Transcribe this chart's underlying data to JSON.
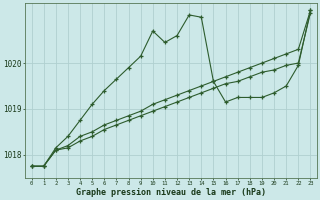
{
  "title": "Graphe pression niveau de la mer (hPa)",
  "bg_color": "#cce8e8",
  "grid_color": "#b0d0d0",
  "line_color": "#2d5c2d",
  "xlim": [
    -0.5,
    23.5
  ],
  "ylim": [
    1017.5,
    1021.3
  ],
  "yticks": [
    1018,
    1019,
    1020
  ],
  "xticks": [
    0,
    1,
    2,
    3,
    4,
    5,
    6,
    7,
    8,
    9,
    10,
    11,
    12,
    13,
    14,
    15,
    16,
    17,
    18,
    19,
    20,
    21,
    22,
    23
  ],
  "line1_x": [
    0,
    1,
    2,
    3,
    4,
    5,
    6,
    7,
    8,
    9,
    10,
    11,
    12,
    13,
    14,
    15,
    16,
    17,
    18,
    19,
    20,
    21,
    22,
    23
  ],
  "line1_y": [
    1017.75,
    1017.75,
    1018.1,
    1018.15,
    1018.3,
    1018.4,
    1018.55,
    1018.65,
    1018.75,
    1018.85,
    1018.95,
    1019.05,
    1019.15,
    1019.25,
    1019.35,
    1019.45,
    1019.55,
    1019.6,
    1019.7,
    1019.8,
    1019.85,
    1019.95,
    1020.0,
    1021.1
  ],
  "line2_x": [
    0,
    1,
    2,
    3,
    4,
    5,
    6,
    7,
    8,
    9,
    10,
    11,
    12,
    13,
    14,
    15,
    16,
    17,
    18,
    19,
    20,
    21,
    22,
    23
  ],
  "line2_y": [
    1017.75,
    1017.75,
    1018.1,
    1018.2,
    1018.4,
    1018.5,
    1018.65,
    1018.75,
    1018.85,
    1018.95,
    1019.1,
    1019.2,
    1019.3,
    1019.4,
    1019.5,
    1019.6,
    1019.7,
    1019.8,
    1019.9,
    1020.0,
    1020.1,
    1020.2,
    1020.3,
    1021.15
  ],
  "line3_x": [
    0,
    1,
    2,
    3,
    4,
    5,
    6,
    7,
    8,
    9,
    10,
    11,
    12,
    13,
    14,
    15,
    16,
    17,
    18,
    19,
    20,
    21,
    22,
    23
  ],
  "line3_y": [
    1017.75,
    1017.75,
    1018.15,
    1018.4,
    1018.75,
    1019.1,
    1019.4,
    1019.65,
    1019.9,
    1020.15,
    1020.7,
    1020.45,
    1020.6,
    1021.05,
    1021.0,
    1019.6,
    1019.15,
    1019.25,
    1019.25,
    1019.25,
    1019.35,
    1019.5,
    1019.95,
    1021.15
  ]
}
